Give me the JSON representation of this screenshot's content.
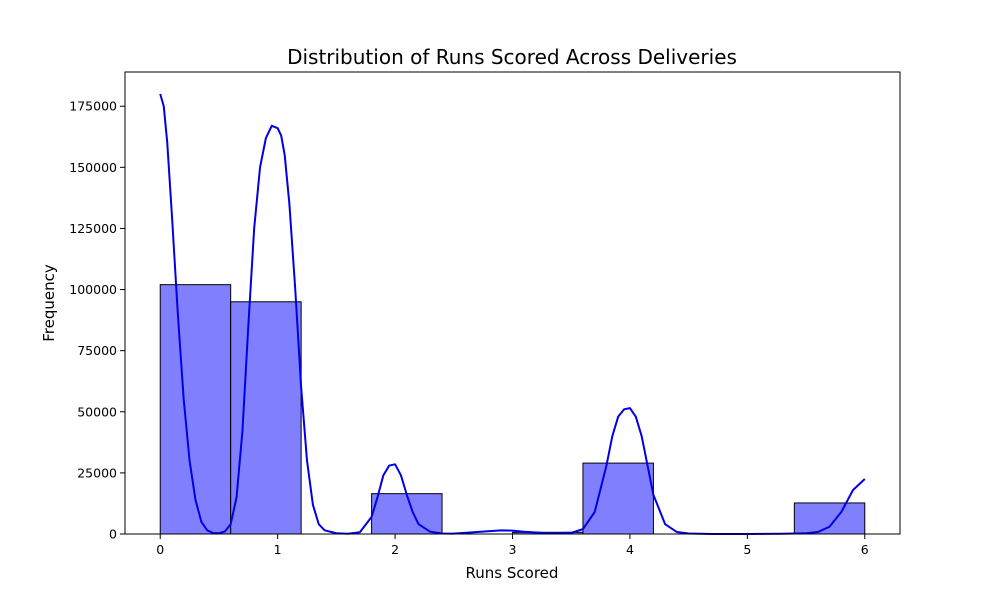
{
  "chart_data": {
    "type": "bar",
    "title": "Distribution of Runs Scored Across Deliveries",
    "xlabel": "Runs Scored",
    "ylabel": "Frequency",
    "xlim": [
      -0.3,
      6.3
    ],
    "ylim": [
      0,
      189000
    ],
    "x_ticks": [
      0,
      1,
      2,
      3,
      4,
      5,
      6
    ],
    "x_tick_labels": [
      "0",
      "1",
      "2",
      "3",
      "4",
      "5",
      "6"
    ],
    "y_ticks": [
      0,
      25000,
      50000,
      75000,
      100000,
      125000,
      150000,
      175000
    ],
    "y_tick_labels": [
      "0",
      "25000",
      "50000",
      "75000",
      "100000",
      "125000",
      "150000",
      "175000"
    ],
    "bins": [
      {
        "start": 0.0,
        "end": 0.6,
        "value": 102000
      },
      {
        "start": 0.6,
        "end": 1.2,
        "value": 95000
      },
      {
        "start": 1.2,
        "end": 1.8,
        "value": 0
      },
      {
        "start": 1.8,
        "end": 2.4,
        "value": 16500
      },
      {
        "start": 2.4,
        "end": 3.0,
        "value": 0
      },
      {
        "start": 3.0,
        "end": 3.6,
        "value": 700
      },
      {
        "start": 3.6,
        "end": 4.2,
        "value": 29000
      },
      {
        "start": 4.2,
        "end": 4.8,
        "value": 0
      },
      {
        "start": 4.8,
        "end": 5.4,
        "value": 0
      },
      {
        "start": 5.4,
        "end": 6.0,
        "value": 12700
      }
    ],
    "kde": {
      "x": [
        0.0,
        0.03,
        0.06,
        0.1,
        0.15,
        0.2,
        0.25,
        0.3,
        0.35,
        0.4,
        0.45,
        0.5,
        0.55,
        0.6,
        0.65,
        0.7,
        0.75,
        0.8,
        0.85,
        0.9,
        0.95,
        1.0,
        1.03,
        1.06,
        1.1,
        1.15,
        1.2,
        1.25,
        1.3,
        1.35,
        1.4,
        1.5,
        1.6,
        1.7,
        1.8,
        1.85,
        1.9,
        1.95,
        2.0,
        2.05,
        2.1,
        2.15,
        2.2,
        2.3,
        2.4,
        2.5,
        2.7,
        2.9,
        3.0,
        3.1,
        3.3,
        3.5,
        3.6,
        3.7,
        3.8,
        3.85,
        3.9,
        3.95,
        4.0,
        4.05,
        4.1,
        4.15,
        4.2,
        4.3,
        4.4,
        4.5,
        4.7,
        5.0,
        5.3,
        5.5,
        5.6,
        5.7,
        5.8,
        5.9,
        6.0
      ],
      "y": [
        180000,
        175000,
        160000,
        130000,
        90000,
        55000,
        30000,
        14000,
        5000,
        1500,
        400,
        300,
        1000,
        4000,
        15000,
        42000,
        85000,
        125000,
        150000,
        162000,
        167000,
        166000,
        163000,
        155000,
        135000,
        100000,
        60000,
        30000,
        12000,
        4000,
        1500,
        300,
        100,
        700,
        7000,
        15000,
        24000,
        28000,
        28500,
        24000,
        16000,
        9000,
        4000,
        900,
        200,
        150,
        800,
        1500,
        1400,
        900,
        300,
        500,
        2000,
        9000,
        28000,
        40000,
        48000,
        51000,
        51500,
        48000,
        40000,
        28000,
        16000,
        4000,
        800,
        200,
        0,
        0,
        100,
        300,
        800,
        3000,
        9000,
        18000,
        22500
      ]
    },
    "colors": {
      "bar_fill": "#8080ff",
      "bar_edge": "#000000",
      "kde_line": "#0000e6"
    },
    "grid": false,
    "legend": false
  }
}
